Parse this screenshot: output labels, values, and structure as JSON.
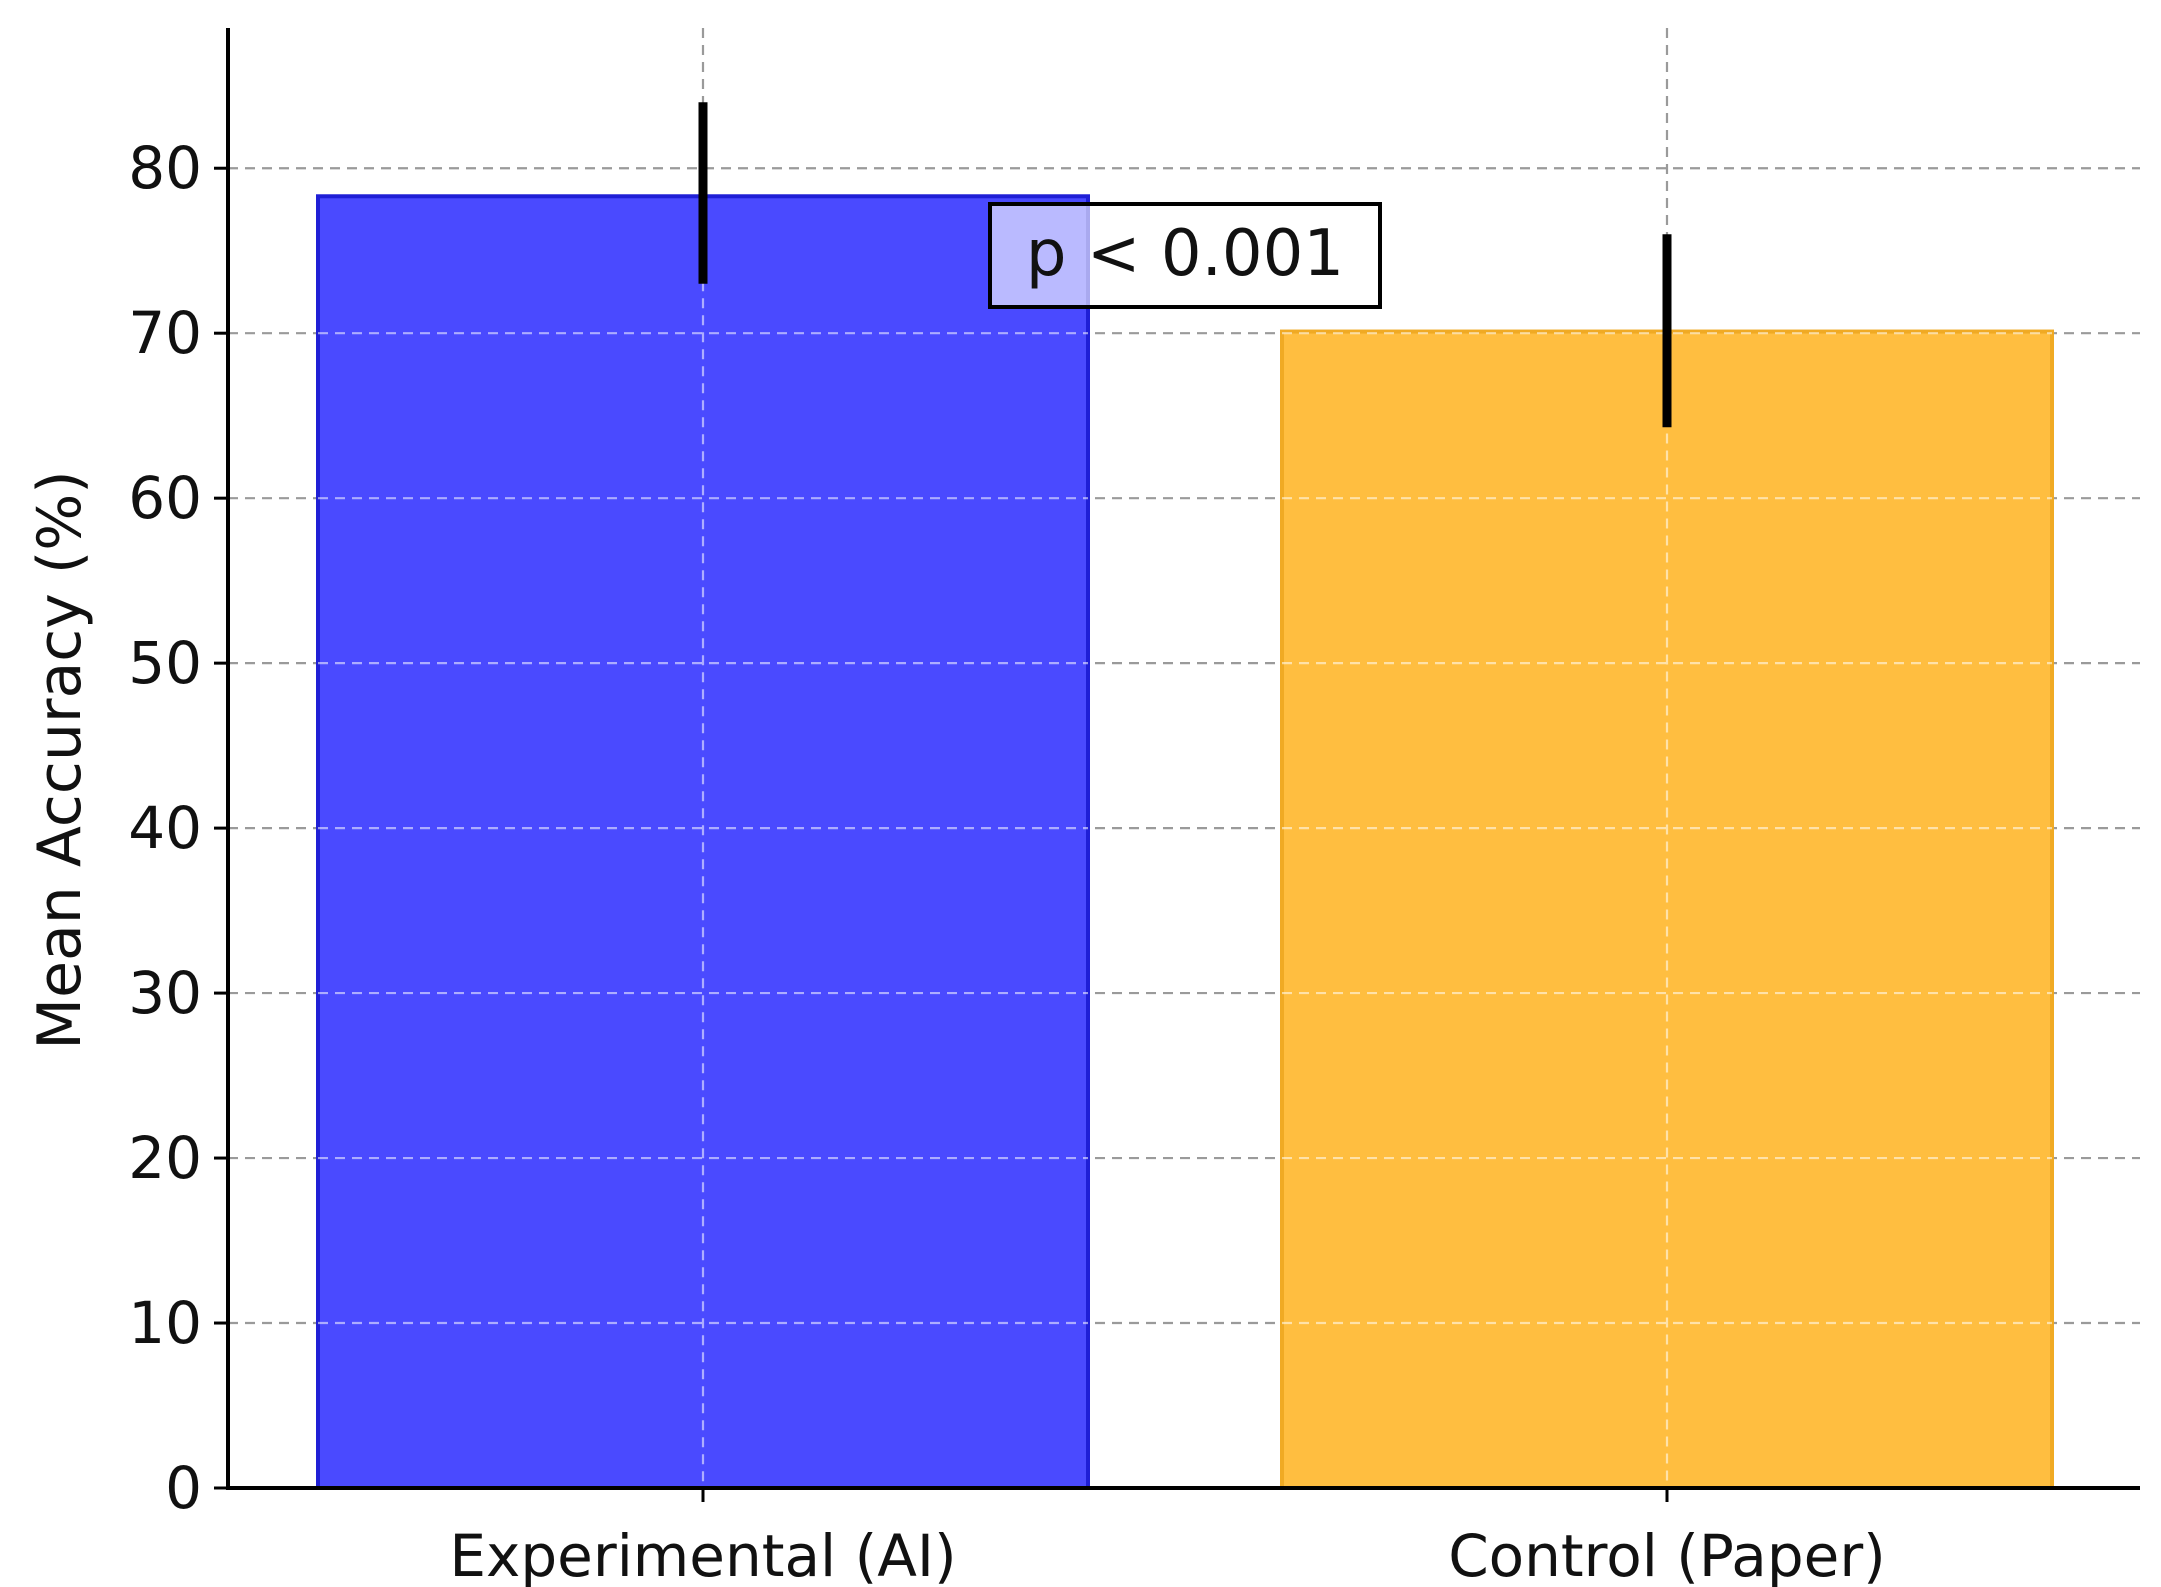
{
  "chart_data": {
    "type": "bar",
    "categories": [
      "Experimental (AI)",
      "Control (Paper)"
    ],
    "values": [
      78.3,
      70.1
    ],
    "error_bars": [
      {
        "low": 73.0,
        "high": 84.0
      },
      {
        "low": 64.3,
        "high": 76.0
      }
    ],
    "colors": [
      "#4a4aff",
      "#ffbe40"
    ],
    "edge_colors": [
      "#1f1fd6",
      "#f0aa24"
    ],
    "ylabel": "Mean Accuracy (%)",
    "xlabel": "",
    "ylim": [
      0,
      88.5
    ],
    "yticks": [
      0,
      10,
      20,
      30,
      40,
      50,
      60,
      70,
      80
    ],
    "grid": true,
    "annotation": "p < 0.001"
  }
}
